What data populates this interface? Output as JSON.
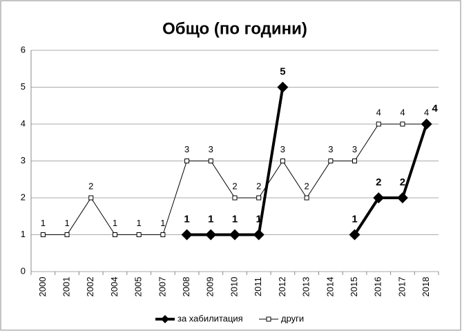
{
  "chart_data": {
    "type": "line",
    "title": "Общо (по години)",
    "categories": [
      "2000",
      "2001",
      "2002",
      "2004",
      "2005",
      "2007",
      "2008",
      "2009",
      "2010",
      "2011",
      "2012",
      "2013",
      "2014",
      "2015",
      "2016",
      "2017",
      "2018"
    ],
    "series": [
      {
        "name": "за хабилитация",
        "color": "#000000",
        "marker": "diamond",
        "values": [
          null,
          null,
          null,
          null,
          null,
          null,
          1,
          1,
          1,
          1,
          5,
          null,
          null,
          1,
          2,
          2,
          4
        ]
      },
      {
        "name": "други",
        "color": "#000000",
        "marker": "square",
        "values": [
          1,
          1,
          2,
          1,
          1,
          1,
          3,
          3,
          2,
          2,
          3,
          2,
          3,
          3,
          4,
          4,
          4
        ]
      }
    ],
    "ylim": [
      0,
      6
    ],
    "yticks": [
      0,
      1,
      2,
      3,
      4,
      5,
      6
    ],
    "grid": true,
    "legend": "bottom"
  }
}
